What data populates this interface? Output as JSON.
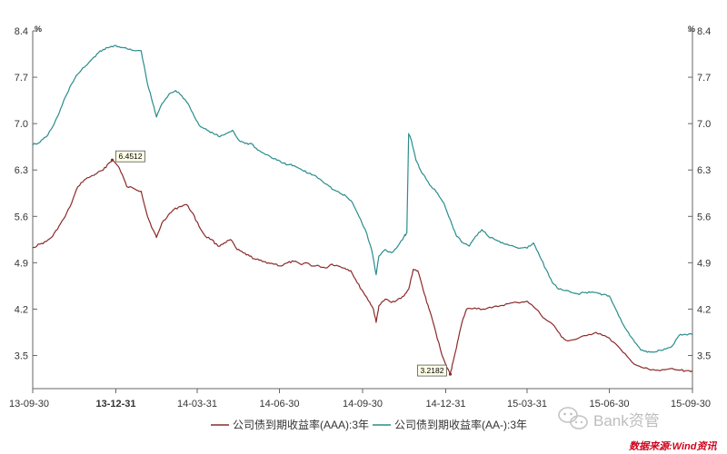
{
  "chart_data": {
    "type": "line",
    "title": "",
    "xlabel": "",
    "ylabel": "",
    "unit_left": "%",
    "unit_right": "%",
    "ylim": [
      3.0,
      8.4
    ],
    "y_ticks": [
      "3.5",
      "4.2",
      "4.9",
      "5.6",
      "6.3",
      "7.0",
      "7.7",
      "8.4"
    ],
    "x_ticks": [
      {
        "label": "13-09-30",
        "date": "2013-09-30",
        "bold": false
      },
      {
        "label": "13-12-31",
        "date": "2013-12-31",
        "bold": true
      },
      {
        "label": "14-03-31",
        "date": "2014-03-31",
        "bold": false
      },
      {
        "label": "14-06-30",
        "date": "2014-06-30",
        "bold": false
      },
      {
        "label": "14-09-30",
        "date": "2014-09-30",
        "bold": false
      },
      {
        "label": "14-12-31",
        "date": "2014-12-31",
        "bold": false
      },
      {
        "label": "15-03-31",
        "date": "2015-03-31",
        "bold": false
      },
      {
        "label": "15-06-30",
        "date": "2015-06-30",
        "bold": false
      },
      {
        "label": "15-09-30",
        "date": "2015-09-30",
        "bold": false
      }
    ],
    "xlim": [
      "2013-09-30",
      "2015-09-30"
    ],
    "grid": false,
    "legend_position": "bottom",
    "series": [
      {
        "name": "公司债到期收益率(AAA):3年",
        "color": "#8b2a2a",
        "points": [
          [
            "2013-09-30",
            5.13
          ],
          [
            "2013-10-08",
            5.18
          ],
          [
            "2013-10-15",
            5.22
          ],
          [
            "2013-10-22",
            5.3
          ],
          [
            "2013-10-29",
            5.45
          ],
          [
            "2013-11-05",
            5.6
          ],
          [
            "2013-11-12",
            5.8
          ],
          [
            "2013-11-19",
            6.05
          ],
          [
            "2013-11-26",
            6.15
          ],
          [
            "2013-12-03",
            6.2
          ],
          [
            "2013-12-10",
            6.25
          ],
          [
            "2013-12-17",
            6.3
          ],
          [
            "2013-12-23",
            6.4
          ],
          [
            "2013-12-27",
            6.4512
          ],
          [
            "2014-01-03",
            6.35
          ],
          [
            "2014-01-08",
            6.2
          ],
          [
            "2014-01-12",
            6.05
          ],
          [
            "2014-01-20",
            6.02
          ],
          [
            "2014-01-28",
            5.98
          ],
          [
            "2014-02-04",
            5.6
          ],
          [
            "2014-02-10",
            5.4
          ],
          [
            "2014-02-14",
            5.28
          ],
          [
            "2014-02-20",
            5.5
          ],
          [
            "2014-02-27",
            5.62
          ],
          [
            "2014-03-05",
            5.7
          ],
          [
            "2014-03-12",
            5.75
          ],
          [
            "2014-03-19",
            5.78
          ],
          [
            "2014-03-26",
            5.65
          ],
          [
            "2014-04-02",
            5.45
          ],
          [
            "2014-04-09",
            5.3
          ],
          [
            "2014-04-16",
            5.25
          ],
          [
            "2014-04-23",
            5.15
          ],
          [
            "2014-04-30",
            5.2
          ],
          [
            "2014-05-07",
            5.25
          ],
          [
            "2014-05-14",
            5.1
          ],
          [
            "2014-05-21",
            5.05
          ],
          [
            "2014-05-28",
            5.0
          ],
          [
            "2014-06-04",
            4.95
          ],
          [
            "2014-06-11",
            4.92
          ],
          [
            "2014-06-18",
            4.9
          ],
          [
            "2014-06-25",
            4.88
          ],
          [
            "2014-07-02",
            4.85
          ],
          [
            "2014-07-09",
            4.9
          ],
          [
            "2014-07-16",
            4.92
          ],
          [
            "2014-07-23",
            4.88
          ],
          [
            "2014-07-30",
            4.9
          ],
          [
            "2014-08-06",
            4.85
          ],
          [
            "2014-08-13",
            4.85
          ],
          [
            "2014-08-20",
            4.82
          ],
          [
            "2014-08-27",
            4.88
          ],
          [
            "2014-09-03",
            4.85
          ],
          [
            "2014-09-10",
            4.82
          ],
          [
            "2014-09-17",
            4.78
          ],
          [
            "2014-09-24",
            4.6
          ],
          [
            "2014-10-01",
            4.45
          ],
          [
            "2014-10-08",
            4.3
          ],
          [
            "2014-10-12",
            4.2
          ],
          [
            "2014-10-15",
            4.0
          ],
          [
            "2014-10-18",
            4.25
          ],
          [
            "2014-10-25",
            4.35
          ],
          [
            "2014-11-01",
            4.3
          ],
          [
            "2014-11-08",
            4.35
          ],
          [
            "2014-11-15",
            4.4
          ],
          [
            "2014-11-20",
            4.5
          ],
          [
            "2014-11-25",
            4.8
          ],
          [
            "2014-11-30",
            4.78
          ],
          [
            "2014-12-05",
            4.55
          ],
          [
            "2014-12-10",
            4.3
          ],
          [
            "2014-12-15",
            4.1
          ],
          [
            "2014-12-20",
            3.85
          ],
          [
            "2014-12-27",
            3.5
          ],
          [
            "2015-01-02",
            3.3
          ],
          [
            "2015-01-05",
            3.2182
          ],
          [
            "2015-01-08",
            3.4
          ],
          [
            "2015-01-13",
            3.7
          ],
          [
            "2015-01-18",
            4.0
          ],
          [
            "2015-01-23",
            4.2
          ],
          [
            "2015-02-01",
            4.22
          ],
          [
            "2015-02-10",
            4.2
          ],
          [
            "2015-02-20",
            4.22
          ],
          [
            "2015-03-01",
            4.25
          ],
          [
            "2015-03-10",
            4.28
          ],
          [
            "2015-03-20",
            4.3
          ],
          [
            "2015-03-31",
            4.32
          ],
          [
            "2015-04-10",
            4.2
          ],
          [
            "2015-04-20",
            4.05
          ],
          [
            "2015-04-30",
            3.95
          ],
          [
            "2015-05-08",
            3.78
          ],
          [
            "2015-05-15",
            3.72
          ],
          [
            "2015-05-25",
            3.75
          ],
          [
            "2015-06-05",
            3.8
          ],
          [
            "2015-06-15",
            3.85
          ],
          [
            "2015-06-25",
            3.8
          ],
          [
            "2015-07-05",
            3.7
          ],
          [
            "2015-07-15",
            3.55
          ],
          [
            "2015-07-25",
            3.4
          ],
          [
            "2015-08-05",
            3.32
          ],
          [
            "2015-08-15",
            3.28
          ],
          [
            "2015-08-25",
            3.27
          ],
          [
            "2015-09-05",
            3.3
          ],
          [
            "2015-09-15",
            3.28
          ],
          [
            "2015-09-22",
            3.27
          ],
          [
            "2015-09-30",
            3.27
          ]
        ]
      },
      {
        "name": "公司债到期收益率(AA-):3年",
        "color": "#2b8c8c",
        "points": [
          [
            "2013-09-30",
            6.68
          ],
          [
            "2013-10-08",
            6.72
          ],
          [
            "2013-10-15",
            6.8
          ],
          [
            "2013-10-22",
            6.95
          ],
          [
            "2013-10-29",
            7.15
          ],
          [
            "2013-11-05",
            7.4
          ],
          [
            "2013-11-12",
            7.6
          ],
          [
            "2013-11-19",
            7.75
          ],
          [
            "2013-11-26",
            7.85
          ],
          [
            "2013-12-03",
            7.95
          ],
          [
            "2013-12-10",
            8.05
          ],
          [
            "2013-12-17",
            8.12
          ],
          [
            "2013-12-24",
            8.15
          ],
          [
            "2013-12-31",
            8.18
          ],
          [
            "2014-01-07",
            8.15
          ],
          [
            "2014-01-14",
            8.12
          ],
          [
            "2014-01-21",
            8.1
          ],
          [
            "2014-01-28",
            8.1
          ],
          [
            "2014-02-04",
            7.6
          ],
          [
            "2014-02-10",
            7.3
          ],
          [
            "2014-02-14",
            7.1
          ],
          [
            "2014-02-20",
            7.3
          ],
          [
            "2014-02-28",
            7.45
          ],
          [
            "2014-03-07",
            7.5
          ],
          [
            "2014-03-14",
            7.42
          ],
          [
            "2014-03-21",
            7.3
          ],
          [
            "2014-03-28",
            7.1
          ],
          [
            "2014-04-04",
            6.95
          ],
          [
            "2014-04-11",
            6.9
          ],
          [
            "2014-04-18",
            6.85
          ],
          [
            "2014-04-25",
            6.8
          ],
          [
            "2014-05-02",
            6.85
          ],
          [
            "2014-05-09",
            6.9
          ],
          [
            "2014-05-16",
            6.75
          ],
          [
            "2014-05-23",
            6.7
          ],
          [
            "2014-05-30",
            6.7
          ],
          [
            "2014-06-06",
            6.6
          ],
          [
            "2014-06-13",
            6.55
          ],
          [
            "2014-06-20",
            6.5
          ],
          [
            "2014-06-27",
            6.45
          ],
          [
            "2014-07-04",
            6.4
          ],
          [
            "2014-07-11",
            6.38
          ],
          [
            "2014-07-18",
            6.35
          ],
          [
            "2014-07-25",
            6.3
          ],
          [
            "2014-08-01",
            6.25
          ],
          [
            "2014-08-08",
            6.22
          ],
          [
            "2014-08-15",
            6.15
          ],
          [
            "2014-08-22",
            6.08
          ],
          [
            "2014-08-29",
            6.0
          ],
          [
            "2014-09-05",
            5.95
          ],
          [
            "2014-09-12",
            5.9
          ],
          [
            "2014-09-19",
            5.8
          ],
          [
            "2014-09-26",
            5.6
          ],
          [
            "2014-10-03",
            5.4
          ],
          [
            "2014-10-10",
            5.1
          ],
          [
            "2014-10-15",
            4.72
          ],
          [
            "2014-10-18",
            5.0
          ],
          [
            "2014-10-25",
            5.1
          ],
          [
            "2014-11-01",
            5.05
          ],
          [
            "2014-11-08",
            5.15
          ],
          [
            "2014-11-15",
            5.3
          ],
          [
            "2014-11-18",
            5.35
          ],
          [
            "2014-11-20",
            6.85
          ],
          [
            "2014-11-23",
            6.75
          ],
          [
            "2014-11-28",
            6.45
          ],
          [
            "2014-12-03",
            6.3
          ],
          [
            "2014-12-08",
            6.2
          ],
          [
            "2014-12-15",
            6.05
          ],
          [
            "2014-12-22",
            5.95
          ],
          [
            "2014-12-29",
            5.8
          ],
          [
            "2015-01-05",
            5.55
          ],
          [
            "2015-01-12",
            5.3
          ],
          [
            "2015-01-19",
            5.2
          ],
          [
            "2015-01-26",
            5.15
          ],
          [
            "2015-02-02",
            5.3
          ],
          [
            "2015-02-09",
            5.4
          ],
          [
            "2015-02-16",
            5.3
          ],
          [
            "2015-02-23",
            5.25
          ],
          [
            "2015-03-02",
            5.2
          ],
          [
            "2015-03-09",
            5.18
          ],
          [
            "2015-03-16",
            5.15
          ],
          [
            "2015-03-23",
            5.12
          ],
          [
            "2015-03-31",
            5.12
          ],
          [
            "2015-04-07",
            5.2
          ],
          [
            "2015-04-14",
            5.0
          ],
          [
            "2015-04-21",
            4.8
          ],
          [
            "2015-04-28",
            4.6
          ],
          [
            "2015-05-05",
            4.5
          ],
          [
            "2015-05-12",
            4.48
          ],
          [
            "2015-05-19",
            4.45
          ],
          [
            "2015-05-26",
            4.43
          ],
          [
            "2015-06-02",
            4.45
          ],
          [
            "2015-06-09",
            4.45
          ],
          [
            "2015-06-16",
            4.45
          ],
          [
            "2015-06-23",
            4.42
          ],
          [
            "2015-06-30",
            4.4
          ],
          [
            "2015-07-07",
            4.2
          ],
          [
            "2015-07-14",
            4.0
          ],
          [
            "2015-07-21",
            3.85
          ],
          [
            "2015-07-28",
            3.7
          ],
          [
            "2015-08-04",
            3.58
          ],
          [
            "2015-08-11",
            3.55
          ],
          [
            "2015-08-18",
            3.55
          ],
          [
            "2015-08-25",
            3.58
          ],
          [
            "2015-09-01",
            3.6
          ],
          [
            "2015-09-08",
            3.65
          ],
          [
            "2015-09-15",
            3.8
          ],
          [
            "2015-09-22",
            3.82
          ],
          [
            "2015-09-30",
            3.82
          ]
        ]
      }
    ],
    "annotations": [
      {
        "text": "6.4512",
        "date": "2013-12-27",
        "value": 6.4512,
        "series": 0
      },
      {
        "text": "3.2182",
        "date": "2015-01-05",
        "value": 3.2182,
        "series": 0
      }
    ]
  },
  "watermark": {
    "text": "Bank资管",
    "icon": "wechat-icon"
  },
  "source": {
    "text": "数据来源:Wind资讯",
    "color": "#d0021b"
  }
}
